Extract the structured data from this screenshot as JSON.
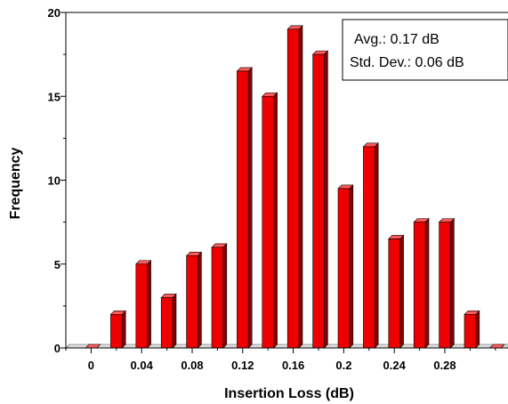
{
  "chart_data": {
    "type": "bar",
    "xlabel": "Insertion Loss (dB)",
    "ylabel": "Frequency",
    "xlim": [
      -0.02,
      0.33
    ],
    "ylim": [
      0,
      20
    ],
    "x_ticks": [
      0,
      0.04,
      0.08,
      0.12,
      0.16,
      0.2,
      0.24,
      0.28
    ],
    "x_tick_labels": [
      "0",
      "0.04",
      "0.08",
      "0.12",
      "0.16",
      "0.2",
      "0.24",
      "0.28"
    ],
    "y_ticks": [
      0,
      5,
      10,
      15,
      20
    ],
    "y_tick_labels": [
      "0",
      "5",
      "10",
      "15",
      "20"
    ],
    "bin_width": 0.02,
    "x": [
      0,
      0.02,
      0.04,
      0.06,
      0.08,
      0.1,
      0.12,
      0.14,
      0.16,
      0.18,
      0.2,
      0.22,
      0.24,
      0.26,
      0.28,
      0.3,
      0.32
    ],
    "values": [
      0,
      2,
      5,
      3,
      5.5,
      6,
      16.5,
      15,
      19,
      17.5,
      9.5,
      12,
      6.5,
      7.5,
      7.5,
      2,
      0
    ],
    "bar_color": "#ee0000",
    "bar_side_color": "#8a0000",
    "bar_top_color": "#ff5a5a",
    "grid": false,
    "stats_box": {
      "position": "top-right",
      "avg_line": "Avg.:  0.17 dB",
      "std_line": "Std. Dev.: 0.06 dB"
    }
  }
}
